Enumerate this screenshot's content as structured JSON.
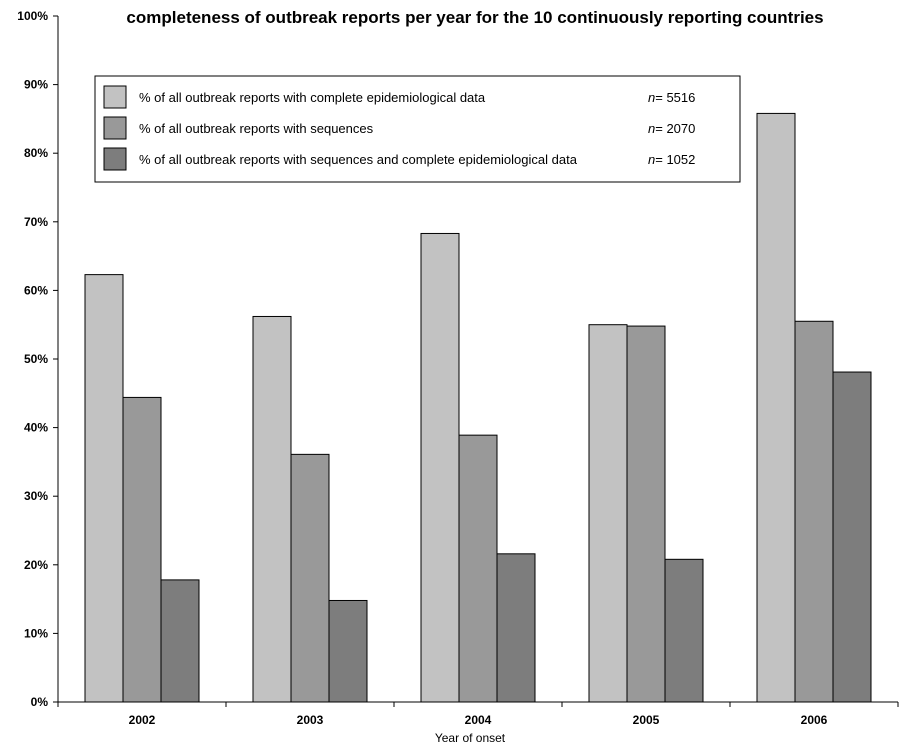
{
  "chart_data": {
    "type": "bar",
    "title": "completeness of outbreak reports per year for the 10 continuously reporting countries",
    "xlabel": "Year of onset",
    "ylabel": "",
    "ylim": [
      0,
      100
    ],
    "y_ticks": [
      "0%",
      "10%",
      "20%",
      "30%",
      "40%",
      "50%",
      "60%",
      "70%",
      "80%",
      "90%",
      "100%"
    ],
    "categories": [
      "2002",
      "2003",
      "2004",
      "2005",
      "2006"
    ],
    "series": [
      {
        "name": "% of all outbreak reports with complete epidemiological data",
        "n_label": "n",
        "n_value": "= 5516",
        "color": "#c2c2c2",
        "values": [
          62.3,
          56.2,
          68.3,
          55.0,
          85.8
        ]
      },
      {
        "name": "% of all outbreak reports with sequences",
        "n_label": "n",
        "n_value": "= 2070",
        "color": "#999999",
        "values": [
          44.4,
          36.1,
          38.9,
          54.8,
          55.5
        ]
      },
      {
        "name": "% of all outbreak reports with sequences and complete epidemiological data",
        "n_label": "n",
        "n_value": "= 1052",
        "color": "#7d7d7d",
        "values": [
          17.8,
          14.8,
          21.6,
          20.8,
          48.1
        ]
      }
    ],
    "legend_position": "top-left",
    "grid": false
  }
}
